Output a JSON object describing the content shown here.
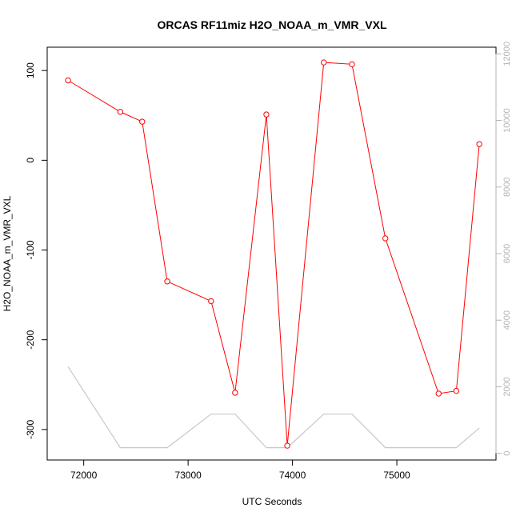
{
  "chart_data": {
    "type": "line",
    "title": "ORCAS RF11miz H2O_NOAA_m_VMR_VXL",
    "xlabel": "UTC Seconds",
    "ylabel": "H2O_NOAA_m_VMR_VXL",
    "xlim": [
      71650,
      75950
    ],
    "ylim": [
      -334,
      126
    ],
    "y2lim": [
      -200,
      12200
    ],
    "x_ticks": [
      72000,
      73000,
      74000,
      75000
    ],
    "y_ticks": [
      -300,
      -200,
      -100,
      0,
      100
    ],
    "y2_ticks": [
      0,
      2000,
      4000,
      6000,
      8000,
      10000,
      12000
    ],
    "grid": false,
    "colors": {
      "primary": "#ff0000",
      "secondary": "#c8c8c8"
    },
    "series": [
      {
        "axis": "left",
        "marker": "open-circle",
        "x": [
          71850,
          72350,
          72560,
          72800,
          73220,
          73450,
          73750,
          73950,
          74300,
          74570,
          74890,
          75400,
          75570,
          75790
        ],
        "y": [
          89,
          54,
          43,
          -135,
          -157,
          -259,
          51,
          -318,
          109,
          107,
          -87,
          -260,
          -257,
          18
        ]
      },
      {
        "axis": "right",
        "marker": "none",
        "x": [
          71850,
          72350,
          72800,
          73220,
          73450,
          73750,
          73950,
          74300,
          74570,
          74890,
          75400,
          75570,
          75790
        ],
        "y": [
          2600,
          170,
          170,
          1180,
          1180,
          170,
          170,
          1180,
          1180,
          170,
          170,
          170,
          760
        ]
      }
    ]
  }
}
